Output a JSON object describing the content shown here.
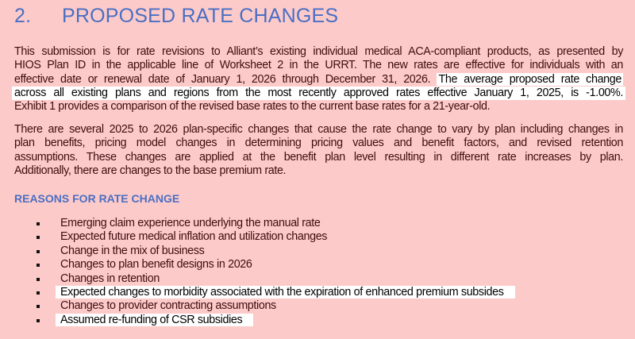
{
  "section": {
    "number": "2.",
    "title": "PROPOSED RATE CHANGES"
  },
  "paragraph1": [
    {
      "text": "This submission is for rate revisions to Alliant’s existing individual medical ACA-compliant products, as presented by",
      "highlight": ""
    },
    {
      "text": "HIOS Plan ID in the applicable line of Worksheet 2 in the URRT. The new rates are effective for individuals with an",
      "highlight": ""
    },
    {
      "text": "effective date or renewal date of January 1, 2026 through December 31, 2026.",
      "highlight": "The average proposed rate change"
    },
    {
      "text": "across all existing plans and regions from the most recently approved rates effective January 1, 2025, is -1.00%.",
      "highlight": "full"
    },
    {
      "text": "Exhibit 1 provides a comparison of the revised base rates to the current base rates for a 21-year-old.",
      "highlight": ""
    }
  ],
  "paragraph2": [
    "There are several 2025 to 2026 plan-specific changes that cause the rate change to vary by plan including changes in",
    "plan benefits, pricing model changes in determining pricing values and benefit factors, and revised retention",
    "assumptions. These changes are applied at the benefit plan level resulting in different rate increases by plan.",
    "Additionally, there are changes to the base premium rate."
  ],
  "reasons_heading": "REASONS FOR RATE CHANGE",
  "reasons": [
    {
      "text": "Emerging claim experience underlying the manual rate",
      "highlighted": false
    },
    {
      "text": "Expected future medical inflation and utilization changes",
      "highlighted": false
    },
    {
      "text": "Change in the mix of business",
      "highlighted": false
    },
    {
      "text": "Changes to plan benefit designs in 2026",
      "highlighted": false
    },
    {
      "text": "Changes in retention",
      "highlighted": false
    },
    {
      "text": "Expected changes to morbidity associated with the expiration of enhanced premium subsides",
      "highlighted": true
    },
    {
      "text": "Changes to provider contracting assumptions",
      "highlighted": false
    },
    {
      "text": "Assumed re-funding of CSR subsidies",
      "highlighted": true
    }
  ],
  "colors": {
    "background": "#fdcaca",
    "heading": "#4a6fc2",
    "text": "#3f0d0d",
    "highlight": "#ffffff"
  }
}
